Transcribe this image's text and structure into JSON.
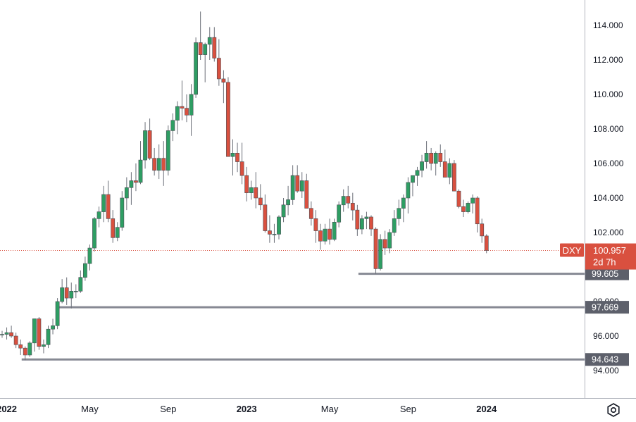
{
  "colors": {
    "up": "#26a69a",
    "down": "#ef5350",
    "up_body": "#2e9e63",
    "down_body": "#d9503f",
    "level_line": "#868993",
    "price_badge": "#d9503f",
    "axis_text": "#131722"
  },
  "icons": {
    "settings": "settings-gear-icon"
  },
  "chart_data": {
    "type": "candlestick",
    "symbol": "DXY",
    "timeframe": "weekly",
    "last_price": "100.957",
    "countdown": "2d 7h",
    "y_axis": {
      "range": [
        92.5,
        115.0
      ],
      "ticks": [
        "114.000",
        "112.000",
        "110.000",
        "108.000",
        "106.000",
        "104.000",
        "102.000",
        "100.000",
        "98.000",
        "96.000",
        "94.000"
      ]
    },
    "x_axis": {
      "labels": [
        {
          "text": "2022",
          "bold": true,
          "index": 1
        },
        {
          "text": "May",
          "bold": false,
          "index": 19
        },
        {
          "text": "Sep",
          "bold": false,
          "index": 36
        },
        {
          "text": "2023",
          "bold": true,
          "index": 53
        },
        {
          "text": "May",
          "bold": false,
          "index": 71
        },
        {
          "text": "Sep",
          "bold": false,
          "index": 88
        },
        {
          "text": "2024",
          "bold": true,
          "index": 105
        }
      ]
    },
    "levels": [
      {
        "value": 99.605,
        "label": "99.605",
        "from_index": 78
      },
      {
        "value": 97.669,
        "label": "97.669",
        "from_index": 13
      },
      {
        "value": 94.643,
        "label": "94.643",
        "from_index": 5
      }
    ],
    "candles": [
      [
        96.1,
        96.3,
        95.9,
        96.1
      ],
      [
        96.1,
        96.5,
        95.8,
        96.2
      ],
      [
        96.2,
        96.6,
        95.9,
        96.0
      ],
      [
        96.0,
        96.2,
        95.3,
        95.5
      ],
      [
        95.5,
        95.8,
        94.9,
        95.3
      ],
      [
        95.3,
        95.4,
        94.6,
        94.9
      ],
      [
        94.9,
        95.7,
        94.8,
        95.6
      ],
      [
        95.6,
        97.0,
        95.1,
        97.0
      ],
      [
        97.0,
        97.1,
        95.2,
        95.4
      ],
      [
        95.4,
        95.8,
        95.0,
        95.5
      ],
      [
        95.5,
        96.6,
        95.3,
        96.4
      ],
      [
        96.4,
        97.0,
        96.1,
        96.6
      ],
      [
        96.6,
        98.2,
        96.4,
        98.0
      ],
      [
        98.0,
        99.3,
        97.9,
        98.8
      ],
      [
        98.8,
        99.4,
        97.8,
        98.2
      ],
      [
        98.2,
        99.1,
        97.6,
        98.6
      ],
      [
        98.6,
        99.0,
        98.2,
        98.6
      ],
      [
        98.6,
        99.8,
        98.5,
        99.4
      ],
      [
        99.4,
        100.6,
        99.2,
        100.2
      ],
      [
        100.2,
        101.3,
        99.8,
        101.1
      ],
      [
        101.1,
        102.9,
        100.9,
        102.8
      ],
      [
        102.8,
        103.5,
        102.3,
        103.2
      ],
      [
        103.2,
        104.7,
        102.6,
        104.2
      ],
      [
        104.2,
        105.0,
        102.6,
        102.8
      ],
      [
        102.8,
        103.3,
        101.4,
        101.7
      ],
      [
        101.7,
        102.6,
        101.5,
        102.3
      ],
      [
        102.3,
        104.4,
        102.1,
        104.0
      ],
      [
        104.0,
        105.2,
        103.3,
        104.6
      ],
      [
        104.6,
        105.5,
        103.6,
        105.0
      ],
      [
        105.0,
        106.0,
        104.4,
        104.9
      ],
      [
        104.9,
        107.3,
        104.8,
        106.2
      ],
      [
        106.2,
        108.4,
        105.7,
        107.9
      ],
      [
        107.9,
        108.6,
        106.2,
        106.3
      ],
      [
        106.3,
        106.9,
        105.3,
        105.6
      ],
      [
        105.6,
        107.1,
        105.1,
        106.3
      ],
      [
        106.3,
        107.3,
        104.7,
        105.6
      ],
      [
        105.6,
        108.2,
        105.3,
        107.9
      ],
      [
        107.9,
        108.9,
        107.3,
        108.5
      ],
      [
        108.5,
        109.6,
        107.7,
        109.3
      ],
      [
        109.3,
        110.8,
        108.5,
        109.2
      ],
      [
        109.2,
        110.0,
        108.4,
        108.8
      ],
      [
        108.8,
        110.6,
        107.6,
        110.0
      ],
      [
        110.0,
        113.3,
        109.8,
        113.0
      ],
      [
        113.0,
        114.8,
        112.0,
        112.3
      ],
      [
        112.3,
        113.0,
        110.7,
        112.9
      ],
      [
        112.9,
        113.9,
        112.0,
        113.3
      ],
      [
        113.3,
        113.9,
        111.9,
        112.1
      ],
      [
        112.1,
        113.2,
        110.5,
        110.9
      ],
      [
        110.9,
        111.4,
        109.5,
        110.7
      ],
      [
        110.7,
        111.0,
        106.4,
        106.4
      ],
      [
        106.4,
        107.4,
        105.3,
        106.6
      ],
      [
        106.6,
        107.2,
        105.5,
        106.1
      ],
      [
        106.1,
        107.2,
        104.8,
        105.3
      ],
      [
        105.3,
        105.8,
        103.8,
        104.3
      ],
      [
        104.3,
        105.0,
        103.9,
        104.6
      ],
      [
        104.6,
        105.5,
        103.4,
        104.0
      ],
      [
        104.0,
        104.8,
        103.3,
        103.6
      ],
      [
        103.6,
        104.2,
        102.0,
        102.1
      ],
      [
        102.1,
        103.0,
        101.4,
        101.9
      ],
      [
        101.9,
        102.5,
        101.4,
        101.9
      ],
      [
        101.9,
        103.0,
        101.6,
        102.9
      ],
      [
        102.9,
        104.0,
        102.6,
        103.6
      ],
      [
        103.6,
        104.7,
        103.0,
        103.9
      ],
      [
        103.9,
        105.9,
        103.6,
        105.3
      ],
      [
        105.3,
        105.9,
        104.3,
        104.4
      ],
      [
        104.4,
        105.5,
        104.0,
        105.0
      ],
      [
        105.0,
        105.4,
        103.4,
        103.4
      ],
      [
        103.4,
        103.8,
        102.4,
        102.8
      ],
      [
        102.8,
        103.3,
        101.4,
        102.1
      ],
      [
        102.1,
        102.5,
        101.0,
        101.5
      ],
      [
        101.5,
        102.5,
        101.3,
        102.2
      ],
      [
        102.2,
        102.8,
        101.3,
        101.6
      ],
      [
        101.6,
        102.8,
        101.5,
        102.6
      ],
      [
        102.6,
        103.8,
        102.3,
        103.6
      ],
      [
        103.6,
        104.5,
        103.2,
        104.1
      ],
      [
        104.1,
        104.7,
        103.4,
        103.7
      ],
      [
        103.7,
        104.3,
        102.7,
        103.3
      ],
      [
        103.3,
        103.6,
        101.8,
        102.2
      ],
      [
        102.2,
        103.0,
        101.9,
        102.8
      ],
      [
        102.8,
        103.2,
        102.2,
        102.9
      ],
      [
        102.9,
        103.0,
        101.8,
        102.2
      ],
      [
        102.2,
        102.3,
        99.6,
        99.9
      ],
      [
        99.9,
        101.9,
        99.8,
        101.6
      ],
      [
        101.6,
        102.1,
        100.7,
        101.1
      ],
      [
        101.1,
        102.2,
        100.8,
        102.0
      ],
      [
        102.0,
        103.3,
        101.8,
        102.8
      ],
      [
        102.8,
        103.9,
        102.4,
        103.4
      ],
      [
        103.4,
        104.2,
        102.6,
        104.0
      ],
      [
        104.0,
        105.2,
        103.1,
        104.9
      ],
      [
        104.9,
        105.3,
        104.1,
        105.3
      ],
      [
        105.3,
        105.8,
        104.7,
        105.6
      ],
      [
        105.6,
        106.5,
        105.2,
        106.1
      ],
      [
        106.1,
        107.3,
        105.7,
        106.6
      ],
      [
        106.6,
        106.9,
        105.6,
        106.0
      ],
      [
        106.0,
        106.7,
        105.3,
        106.6
      ],
      [
        106.6,
        107.1,
        105.8,
        106.1
      ],
      [
        106.1,
        106.8,
        105.4,
        105.2
      ],
      [
        105.2,
        106.3,
        104.8,
        106.0
      ],
      [
        106.0,
        106.2,
        104.4,
        104.4
      ],
      [
        104.4,
        104.5,
        103.4,
        103.5
      ],
      [
        103.5,
        103.9,
        102.9,
        103.2
      ],
      [
        103.2,
        103.8,
        103.1,
        103.7
      ],
      [
        103.7,
        104.2,
        103.1,
        104.0
      ],
      [
        104.0,
        104.1,
        102.0,
        102.5
      ],
      [
        102.5,
        102.8,
        101.4,
        101.8
      ],
      [
        101.8,
        101.9,
        100.8,
        100.957
      ]
    ]
  }
}
